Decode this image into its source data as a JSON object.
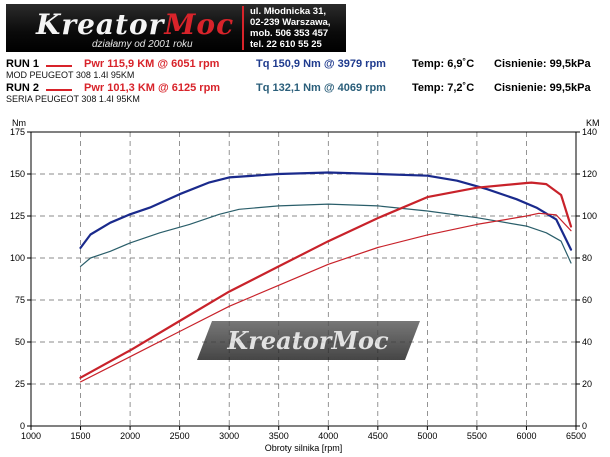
{
  "header": {
    "logo_text_main": "Kreator",
    "logo_text_accent": "Moc",
    "tagline": "działamy od 2001 roku",
    "contact_lines": [
      "ul. Młodnicka 31,",
      "02-239  Warszawa,",
      "mob.  506 353 457",
      "tel.  22 610 55 25"
    ]
  },
  "runs": [
    {
      "label": "RUN 1",
      "pwr": "Pwr  115,9 KM @ 6051 rpm",
      "tq": "Tq 150,9 Nm @ 3979 rpm",
      "temp": "Temp: 6,9˚C",
      "pressure": "Cisnienie: 99,5kPa",
      "description": "MOD PEUGEOT 308 1.4I 95KM",
      "swatch_color": "#d8232a"
    },
    {
      "label": "RUN 2",
      "pwr": "Pwr  101,3 KM @ 6125 rpm",
      "tq": "Tq 132,1 Nm @ 4069 rpm",
      "temp": "Temp: 7,2˚C",
      "pressure": "Cisnienie: 99,5kPa",
      "description": "SERIA PEUGEOT 308 1.4I 95KM",
      "swatch_color": "#d8232a"
    }
  ],
  "chart_data": {
    "type": "line",
    "xlabel": "Obroty silnika [rpm]",
    "ylabel_left": "Nm",
    "ylabel_right": "KM",
    "xlim": [
      1000,
      6500
    ],
    "ylim_left": [
      0,
      175
    ],
    "ylim_right": [
      0,
      140
    ],
    "x_ticks": [
      1000,
      1500,
      2000,
      2500,
      3000,
      3500,
      4000,
      4500,
      5000,
      5500,
      6000,
      6500
    ],
    "y_ticks_left": [
      0,
      25,
      50,
      75,
      100,
      125,
      150,
      175
    ],
    "y_ticks_right": [
      0,
      20,
      40,
      60,
      80,
      100,
      120,
      140
    ],
    "grid": true,
    "watermark": "KreatorMoc",
    "colors": {
      "tq_mod": "#1a2a8c",
      "tq_stock": "#2a5e6a",
      "pwr_mod": "#c8222a",
      "pwr_stock": "#c8222a"
    },
    "series": [
      {
        "axis": "left",
        "x": [
          1500,
          1600,
          1800,
          2000,
          2200,
          2500,
          2800,
          3000,
          3500,
          4000,
          4500,
          5000,
          5300,
          5600,
          5900,
          6100,
          6300,
          6450
        ],
        "y": [
          106,
          114,
          121,
          126,
          130,
          138,
          145,
          148,
          150,
          150.9,
          150,
          149,
          146,
          141,
          135,
          130,
          123,
          105
        ]
      },
      {
        "axis": "left",
        "x": [
          1500,
          1600,
          1800,
          2000,
          2300,
          2600,
          2900,
          3100,
          3500,
          4000,
          4500,
          5000,
          5500,
          6000,
          6200,
          6350,
          6450
        ],
        "y": [
          95,
          100,
          104,
          109,
          115,
          120,
          126,
          129,
          131,
          132.1,
          131,
          128,
          124,
          119,
          115,
          110,
          97
        ]
      },
      {
        "axis": "right",
        "x": [
          1500,
          2000,
          2500,
          3000,
          3500,
          4000,
          4500,
          5000,
          5500,
          6000,
          6051,
          6200,
          6350,
          6450
        ],
        "y": [
          23,
          36,
          50,
          64,
          76,
          88,
          99,
          109,
          113.5,
          115.7,
          115.9,
          115.2,
          110,
          95
        ]
      },
      {
        "axis": "right",
        "x": [
          1500,
          2000,
          2500,
          3000,
          3500,
          4000,
          4500,
          5000,
          5500,
          6000,
          6125,
          6300,
          6450
        ],
        "y": [
          21,
          33,
          45,
          57,
          67,
          77,
          85,
          91,
          96,
          100,
          101.3,
          100.5,
          93
        ]
      }
    ]
  }
}
